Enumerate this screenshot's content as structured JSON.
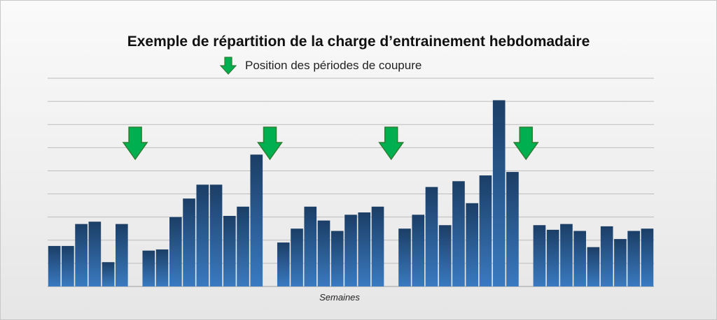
{
  "chart_data": {
    "type": "bar",
    "title": "Exemple de répartition de la charge d’entrainement hebdomadaire",
    "xlabel": "Semaines",
    "ylabel": "",
    "ylim": [
      0,
      9
    ],
    "grid": true,
    "legend": {
      "placement": "top-center",
      "label": "Position des périodes de coupure",
      "marker": "green-down-arrow"
    },
    "values": [
      1.75,
      1.75,
      2.7,
      2.8,
      1.05,
      2.7,
      null,
      1.55,
      1.6,
      3.0,
      3.8,
      4.4,
      4.4,
      3.05,
      3.45,
      5.7,
      null,
      1.9,
      2.5,
      3.45,
      2.85,
      2.4,
      3.1,
      3.2,
      3.45,
      null,
      2.5,
      3.1,
      4.3,
      2.65,
      4.55,
      3.6,
      4.8,
      8.05,
      4.95,
      null,
      2.65,
      2.45,
      2.7,
      2.4,
      1.7,
      2.6,
      2.05,
      2.4,
      2.5
    ],
    "break_markers_after_bar_index": [
      6,
      16,
      25,
      35
    ],
    "colors": {
      "bar_top": "#1b3e66",
      "bar_bottom": "#3a7ac0",
      "arrow_fill": "#00b050",
      "arrow_stroke": "#2e7d32",
      "grid": "#bdbdbd"
    }
  }
}
